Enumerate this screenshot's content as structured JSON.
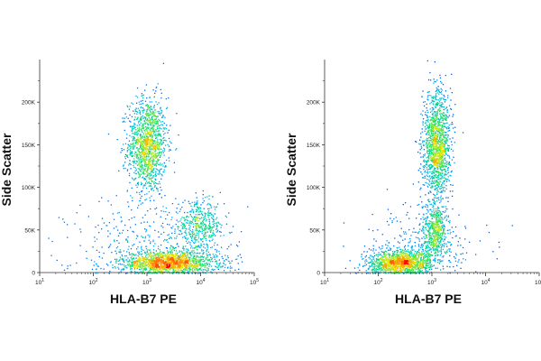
{
  "chart_data": [
    {
      "type": "scatter",
      "subtype": "flow-cytometry-density-plot",
      "xlabel": "HLA-B7 PE",
      "ylabel": "Side Scatter",
      "x_scale": "log",
      "xlim": [
        10,
        100000
      ],
      "ylim": [
        0,
        250000
      ],
      "x_tick_values": [
        10,
        100,
        1000,
        10000,
        100000
      ],
      "x_tick_labels": [
        {
          "base": "10",
          "exp": "1"
        },
        {
          "base": "10",
          "exp": "2"
        },
        {
          "base": "10",
          "exp": "3"
        },
        {
          "base": "10",
          "exp": "4"
        },
        {
          "base": "10",
          "exp": "5"
        }
      ],
      "y_tick_values": [
        0,
        50000,
        100000,
        150000,
        200000
      ],
      "y_tick_labels": [
        "0",
        "50K",
        "100K",
        "150K",
        "200K"
      ],
      "grid": false,
      "colormap": [
        "#0000cc",
        "#00aaff",
        "#00e07a",
        "#e8e800",
        "#ff8800",
        "#ff0000"
      ],
      "populations": [
        {
          "x_center": 1000,
          "y_center": 150000,
          "x_spread_log": 0.18,
          "y_spread": 28000,
          "events": 1300
        },
        {
          "x_center": 2500,
          "y_center": 12000,
          "x_spread_log": 0.45,
          "y_spread": 7000,
          "events": 1500
        },
        {
          "x_center": 9000,
          "y_center": 55000,
          "x_spread_log": 0.22,
          "y_spread": 14000,
          "events": 420
        },
        {
          "x_center": 1500,
          "y_center": 30000,
          "x_spread_log": 0.8,
          "y_spread": 30000,
          "events": 450
        }
      ]
    },
    {
      "type": "scatter",
      "subtype": "flow-cytometry-density-plot",
      "xlabel": "HLA-B7 PE",
      "ylabel": "Side Scatter",
      "x_scale": "log",
      "xlim": [
        10,
        100000
      ],
      "ylim": [
        0,
        250000
      ],
      "x_tick_values": [
        10,
        100,
        1000,
        10000,
        100000
      ],
      "x_tick_labels": [
        {
          "base": "10",
          "exp": "1"
        },
        {
          "base": "10",
          "exp": "2"
        },
        {
          "base": "10",
          "exp": "3"
        },
        {
          "base": "10",
          "exp": "4"
        },
        {
          "base": "10",
          "exp": "5"
        }
      ],
      "y_tick_values": [
        0,
        50000,
        100000,
        150000,
        200000
      ],
      "y_tick_labels": [
        "0",
        "50K",
        "100K",
        "150K",
        "200K"
      ],
      "grid": false,
      "colormap": [
        "#0000cc",
        "#00aaff",
        "#00e07a",
        "#e8e800",
        "#ff8800",
        "#ff0000"
      ],
      "populations": [
        {
          "x_center": 1200,
          "y_center": 150000,
          "x_spread_log": 0.13,
          "y_spread": 32000,
          "events": 1400
        },
        {
          "x_center": 250,
          "y_center": 12000,
          "x_spread_log": 0.3,
          "y_spread": 8000,
          "events": 1300
        },
        {
          "x_center": 1100,
          "y_center": 50000,
          "x_spread_log": 0.12,
          "y_spread": 16000,
          "events": 500
        },
        {
          "x_center": 700,
          "y_center": 30000,
          "x_spread_log": 0.5,
          "y_spread": 25000,
          "events": 300
        }
      ]
    }
  ]
}
